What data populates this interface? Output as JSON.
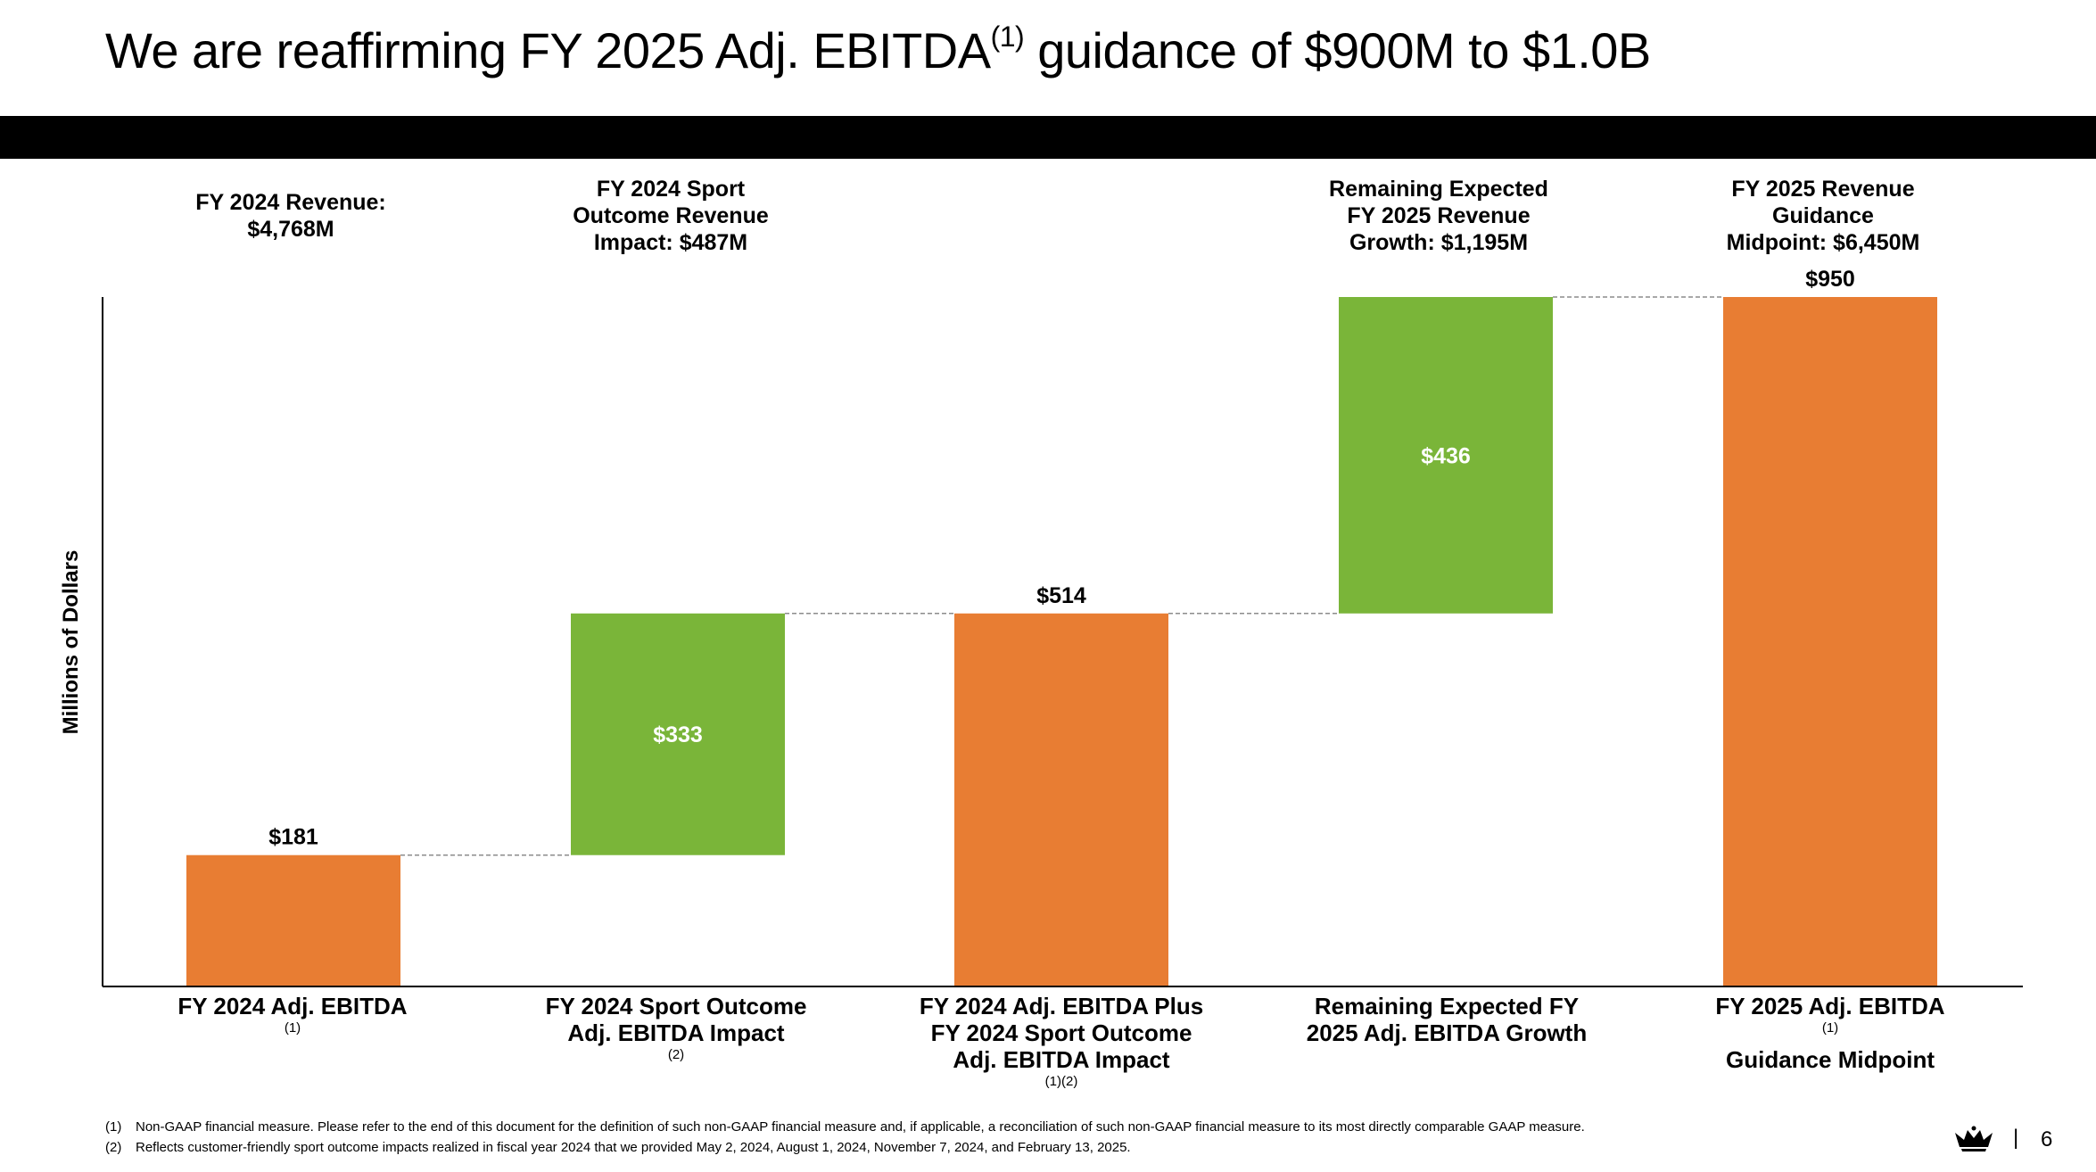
{
  "title": {
    "main": "We are reaffirming FY 2025 Adj. EBITDA",
    "sup": "(1)",
    "rest": " guidance of $900M to $1.0B"
  },
  "top_labels": [
    {
      "lines": [
        "FY 2024 Revenue:",
        "$4,768M"
      ]
    },
    {
      "lines": [
        "FY 2024 Sport",
        "Outcome Revenue",
        "Impact: $487M"
      ]
    },
    {
      "lines": [
        "Remaining Expected",
        "FY 2025 Revenue",
        "Growth: $1,195M"
      ]
    },
    {
      "lines": [
        "FY 2025 Revenue",
        "Guidance",
        "Midpoint: $6,450M"
      ]
    }
  ],
  "colors": {
    "total": "#E87D33",
    "increase": "#7AB539",
    "connector": "#8c8c8c",
    "axis": "#000000"
  },
  "chart_data": {
    "type": "bar",
    "subtype": "waterfall",
    "ylabel": "Millions of Dollars",
    "ylim": [
      0,
      950
    ],
    "grid": false,
    "categories": [
      "FY 2024 Adj. EBITDA(1)",
      "FY 2024 Sport Outcome Adj. EBITDA Impact(2)",
      "FY 2024 Adj. EBITDA Plus FY 2024 Sport Outcome Adj. EBITDA Impact(1)(2)",
      "Remaining Expected FY 2025 Adj. EBITDA Growth",
      "FY 2025 Adj. EBITDA(1) Guidance Midpoint"
    ],
    "category_lines": [
      [
        {
          "t": "FY 2024 Adj. EBITDA",
          "s": "(1)"
        }
      ],
      [
        {
          "t": "FY 2024 Sport Outcome"
        },
        {
          "t": "Adj. EBITDA Impact",
          "s": "(2)"
        }
      ],
      [
        {
          "t": "FY 2024 Adj. EBITDA Plus"
        },
        {
          "t": "FY 2024 Sport Outcome"
        },
        {
          "t": "Adj. EBITDA Impact",
          "s": "(1)(2)"
        }
      ],
      [
        {
          "t": "Remaining Expected FY"
        },
        {
          "t": "2025 Adj. EBITDA Growth"
        }
      ],
      [
        {
          "t": "FY 2025 Adj. EBITDA",
          "s": "(1)"
        },
        {
          "t": "Guidance Midpoint"
        }
      ]
    ],
    "bars": [
      {
        "kind": "total",
        "base": 0,
        "value": 181,
        "label": "$181"
      },
      {
        "kind": "increase",
        "base": 181,
        "value": 333,
        "label": "$333"
      },
      {
        "kind": "total",
        "base": 0,
        "value": 514,
        "label": "$514"
      },
      {
        "kind": "increase",
        "base": 514,
        "value": 436,
        "label": "$436"
      },
      {
        "kind": "total",
        "base": 0,
        "value": 950,
        "label": "$950"
      }
    ]
  },
  "footnotes": [
    {
      "num": "(1)",
      "text": "Non-GAAP financial measure. Please refer to the end of this document for the definition of such non-GAAP financial measure and, if applicable, a reconciliation of such non-GAAP financial measure to its most directly comparable GAAP measure."
    },
    {
      "num": "(2)",
      "text": "Reflects customer-friendly sport outcome impacts realized in fiscal year 2024 that we provided May 2, 2024, August 1, 2024, November 7, 2024, and February 13, 2025."
    }
  ],
  "page": {
    "separator": "|",
    "number": "6"
  },
  "logo_icon": "crown-logo-icon"
}
